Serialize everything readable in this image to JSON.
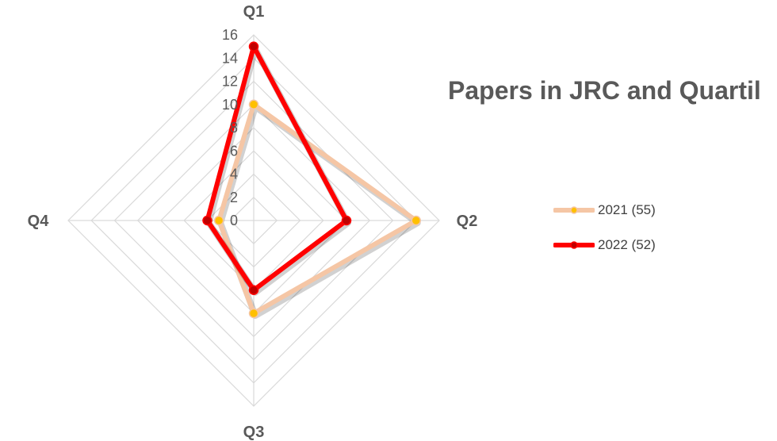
{
  "chart_data": {
    "type": "radar",
    "title": "Papers in JRC and Quartil",
    "categories": [
      "Q1",
      "Q2",
      "Q3",
      "Q4"
    ],
    "rlim": [
      0,
      16
    ],
    "ticks": [
      0,
      2,
      4,
      6,
      8,
      10,
      12,
      14,
      16
    ],
    "tick_labels": [
      "0",
      "2",
      "4",
      "6",
      "8",
      "10",
      "12",
      "14",
      "16"
    ],
    "grid": true,
    "legend_position": "right",
    "series": [
      {
        "name": "2021 (55)",
        "values": [
          10,
          14,
          8,
          3
        ],
        "line_color": "#f5c6a5",
        "marker_fill": "#ffc000",
        "marker_stroke": "#f5c6a5"
      },
      {
        "name": "2022 (52)",
        "values": [
          15,
          8,
          6,
          4
        ],
        "line_color": "#ff0000",
        "marker_fill": "#c00000",
        "marker_stroke": "#ff0000"
      }
    ]
  },
  "colors": {
    "grid": "#d9d9d9",
    "axis_label": "#595959",
    "tick_label": "#595959"
  }
}
